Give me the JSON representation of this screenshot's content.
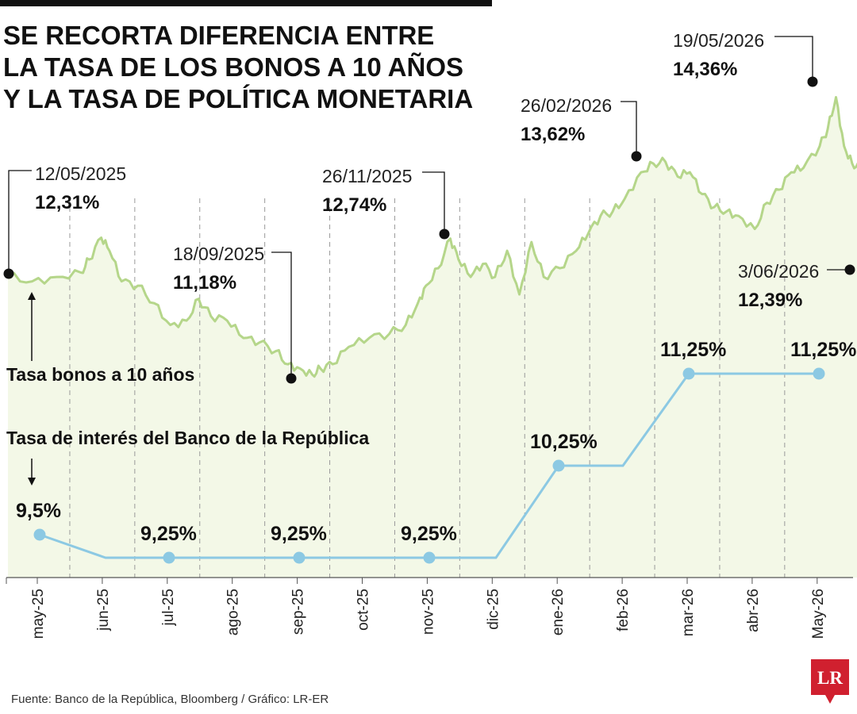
{
  "title_lines": [
    "SE RECORTA DIFERENCIA ENTRE",
    "LA TASA DE LOS BONOS A 10 AÑOS",
    "Y LA TASA DE POLÍTICA MONETARIA"
  ],
  "source": "Fuente: Banco de la República, Bloomberg / Gráfico: LR-ER",
  "logo": "LR",
  "colors": {
    "bond_line": "#b5d68a",
    "bond_fill": "#f3f8e7",
    "rate_line": "#8cc9e3",
    "rate_point": "#8cc9e3",
    "annotation": "#111111",
    "logo_bg": "#d0202f"
  },
  "chart_data": {
    "type": "line",
    "x_ticks": [
      "may-25",
      "jun-25",
      "jul-25",
      "ago-25",
      "sep-25",
      "oct-25",
      "nov-25",
      "dic-25",
      "ene-26",
      "feb-26",
      "mar-26",
      "abr-26",
      "May-26"
    ],
    "grid": "vertical dashed lines between months",
    "series": [
      {
        "name": "Tasa bonos a 10 años",
        "unit": "%",
        "values": [
          [
            0,
            12.31
          ],
          [
            0.3,
            12.25
          ],
          [
            0.6,
            12.3
          ],
          [
            0.9,
            12.35
          ],
          [
            1.0,
            12.5
          ],
          [
            1.15,
            12.75
          ],
          [
            1.25,
            12.6
          ],
          [
            1.4,
            12.25
          ],
          [
            1.6,
            12.2
          ],
          [
            1.8,
            12.0
          ],
          [
            2.0,
            11.75
          ],
          [
            2.2,
            11.8
          ],
          [
            2.35,
            12.05
          ],
          [
            2.5,
            11.85
          ],
          [
            2.7,
            11.8
          ],
          [
            2.9,
            11.6
          ],
          [
            3.1,
            11.55
          ],
          [
            3.3,
            11.45
          ],
          [
            3.45,
            11.3
          ],
          [
            3.6,
            11.25
          ],
          [
            3.75,
            11.18
          ],
          [
            3.85,
            11.25
          ],
          [
            4.0,
            11.3
          ],
          [
            4.2,
            11.5
          ],
          [
            4.45,
            11.6
          ],
          [
            4.7,
            11.65
          ],
          [
            4.9,
            11.75
          ],
          [
            5.05,
            12.0
          ],
          [
            5.15,
            12.2
          ],
          [
            5.3,
            12.4
          ],
          [
            5.45,
            12.74
          ],
          [
            5.55,
            12.5
          ],
          [
            5.7,
            12.3
          ],
          [
            5.85,
            12.45
          ],
          [
            6.0,
            12.3
          ],
          [
            6.15,
            12.6
          ],
          [
            6.3,
            12.1
          ],
          [
            6.45,
            12.7
          ],
          [
            6.6,
            12.3
          ],
          [
            6.8,
            12.4
          ],
          [
            7.0,
            12.6
          ],
          [
            7.15,
            12.8
          ],
          [
            7.3,
            13.0
          ],
          [
            7.45,
            13.05
          ],
          [
            7.6,
            13.2
          ],
          [
            7.8,
            13.5
          ],
          [
            7.95,
            13.6
          ],
          [
            8.1,
            13.62
          ],
          [
            8.25,
            13.45
          ],
          [
            8.4,
            13.5
          ],
          [
            8.55,
            13.25
          ],
          [
            8.7,
            13.1
          ],
          [
            8.85,
            13.05
          ],
          [
            9.0,
            13.0
          ],
          [
            9.2,
            12.85
          ],
          [
            9.35,
            13.15
          ],
          [
            9.5,
            13.3
          ],
          [
            9.65,
            13.5
          ],
          [
            9.8,
            13.55
          ],
          [
            10.0,
            13.8
          ],
          [
            10.1,
            14.0
          ],
          [
            10.2,
            14.36
          ],
          [
            10.3,
            13.8
          ],
          [
            10.4,
            13.6
          ],
          [
            10.5,
            13.55
          ],
          [
            10.6,
            12.8
          ],
          [
            10.65,
            12.39
          ]
        ],
        "x_unit": "months since may-25 (tick index)"
      },
      {
        "name": "Tasa de interés del Banco de la República",
        "unit": "%",
        "values": [
          [
            0,
            9.5
          ],
          [
            1,
            9.25
          ],
          [
            2,
            9.25
          ],
          [
            3,
            9.25
          ],
          [
            4,
            9.25
          ],
          [
            5,
            9.25
          ],
          [
            6,
            9.25
          ],
          [
            7,
            9.25
          ],
          [
            8,
            10.25
          ],
          [
            9,
            10.25
          ],
          [
            10,
            11.25
          ],
          [
            11,
            11.25
          ],
          [
            12,
            11.25
          ]
        ],
        "x_unit": "months since may-25 (tick index)"
      }
    ],
    "ylim": [
      9.0,
      14.8
    ]
  },
  "series_labels": {
    "bond": "Tasa bonos a 10 años",
    "rate": "Tasa de interés del Banco de la República"
  },
  "bond_annotations": [
    {
      "date": "12/05/2025",
      "value": "12,31%",
      "x_index": 0
    },
    {
      "date": "18/09/2025",
      "value": "11,18%",
      "x_index": 4.2
    },
    {
      "date": "26/11/2025",
      "value": "12,74%",
      "x_index": 6.7
    },
    {
      "date": "26/02/2026",
      "value": "13,62%",
      "x_index": 9.55
    },
    {
      "date": "19/05/2026",
      "value": "14,36%",
      "x_index": 12.25
    },
    {
      "date": "3/06/2026",
      "value": "12,39%",
      "x_index": 12.85
    }
  ],
  "rate_points": [
    {
      "value": "9,5%",
      "x_index": 0.45,
      "y": 9.5
    },
    {
      "value": "9,25%",
      "x_index": 2.45,
      "y": 9.25
    },
    {
      "value": "9,25%",
      "x_index": 4.45,
      "y": 9.25
    },
    {
      "value": "9,25%",
      "x_index": 6.45,
      "y": 9.25
    },
    {
      "value": "10,25%",
      "x_index": 8.45,
      "y": 10.25
    },
    {
      "value": "11,25%",
      "x_index": 10.45,
      "y": 11.25
    },
    {
      "value": "11,25%",
      "x_index": 12.45,
      "y": 11.25
    }
  ]
}
